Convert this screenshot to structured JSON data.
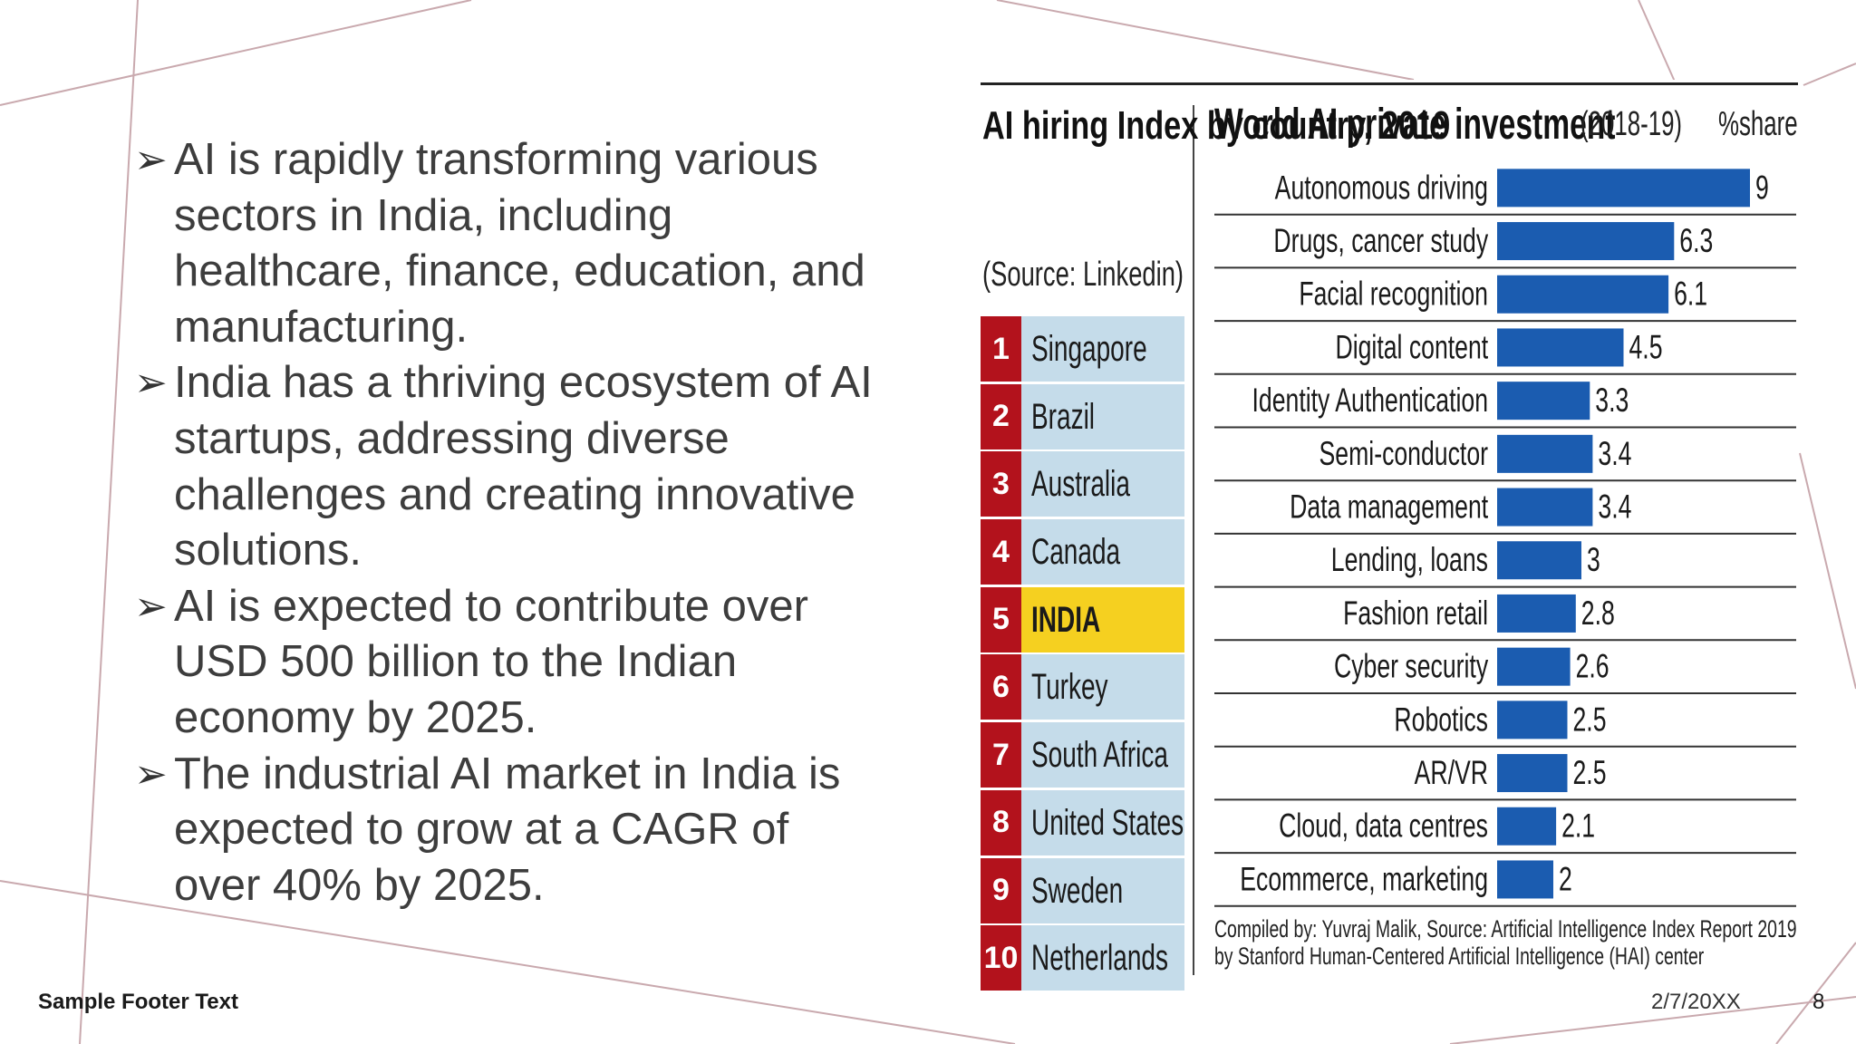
{
  "bullets": [
    "AI is rapidly transforming various sectors in India, including healthcare, finance, education, and manufacturing.",
    "India has a thriving ecosystem of AI startups, addressing diverse challenges and creating innovative solutions.",
    "AI is expected to contribute over USD 500 billion to the Indian economy by 2025.",
    "The industrial AI market in India is expected to grow at a CAGR of over 40% by 2025."
  ],
  "bullet_arrow": "➢",
  "footer": {
    "text": "Sample Footer Text",
    "date": "2/7/20XX",
    "page": "8"
  },
  "colors": {
    "bar": "#1b5cb0",
    "rank_badge": "#b3121c",
    "rank_bg": "#c5dcea",
    "highlight": "#f5d020"
  },
  "chart_data": [
    {
      "type": "table",
      "title": "AI hiring Index by country, 2019",
      "subtitle": "(Source: Linkedin)",
      "rows": [
        {
          "rank": "1",
          "country": "Singapore"
        },
        {
          "rank": "2",
          "country": "Brazil"
        },
        {
          "rank": "3",
          "country": "Australia"
        },
        {
          "rank": "4",
          "country": "Canada"
        },
        {
          "rank": "5",
          "country": "INDIA",
          "highlight": true
        },
        {
          "rank": "6",
          "country": "Turkey"
        },
        {
          "rank": "7",
          "country": "South Africa"
        },
        {
          "rank": "8",
          "country": "United States"
        },
        {
          "rank": "9",
          "country": "Sweden"
        },
        {
          "rank": "10",
          "country": "Netherlands"
        }
      ]
    },
    {
      "type": "bar",
      "orientation": "horizontal",
      "title": "World AI private investment",
      "period": "(2018-19)",
      "unit_label": "%share",
      "categories": [
        "Autonomous driving",
        "Drugs, cancer study",
        "Facial recognition",
        "Digital content",
        "Identity Authentication",
        "Semi-conductor",
        "Data management",
        "Lending, loans",
        "Fashion retail",
        "Cyber security",
        "Robotics",
        "AR/VR",
        "Cloud, data centres",
        "Ecommerce, marketing"
      ],
      "values": [
        9,
        6.3,
        6.1,
        4.5,
        3.3,
        3.4,
        3.4,
        3,
        2.8,
        2.6,
        2.5,
        2.5,
        2.1,
        2
      ],
      "value_labels": [
        "9",
        "6.3",
        "6.1",
        "4.5",
        "3.3",
        "3.4",
        "3.4",
        "3",
        "2.8",
        "2.6",
        "2.5",
        "2.5",
        "2.1",
        "2"
      ],
      "xlim": [
        0,
        9
      ],
      "grid": false,
      "credit_lines": [
        "Compiled by: Yuvraj Malik, Source: Artificial Intelligence Index Report 2019",
        "by Stanford Human-Centered Artificial Intelligence (HAI) center"
      ]
    }
  ]
}
